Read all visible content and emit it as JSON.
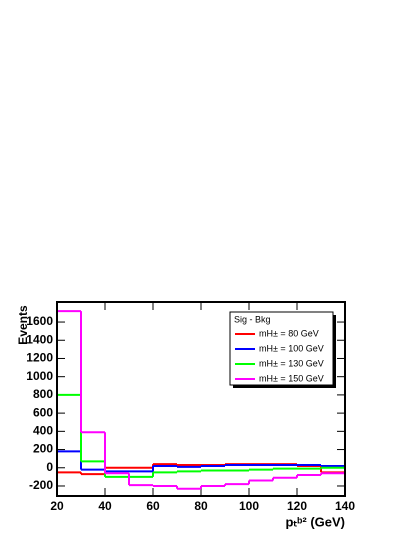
{
  "chart_data": {
    "type": "histogram",
    "xlabel": "pₜᵇ² (GeV)",
    "ylabel": "Events",
    "legend_title": "Sig - Bkg",
    "legend": "upper right",
    "bins": [
      20,
      30,
      40,
      50,
      60,
      70,
      80,
      90,
      100,
      110,
      120,
      130,
      140
    ],
    "series": [
      {
        "name": "mH± = 80 GeV",
        "color": "#ff0000",
        "values": [
          -50,
          -70,
          0,
          0,
          40,
          30,
          30,
          40,
          40,
          40,
          20,
          -50
        ]
      },
      {
        "name": "mH± = 100 GeV",
        "color": "#0000ff",
        "values": [
          180,
          -20,
          -40,
          -40,
          20,
          10,
          20,
          30,
          30,
          30,
          30,
          20
        ]
      },
      {
        "name": "mH± = 130 GeV",
        "color": "#00ff00",
        "values": [
          800,
          70,
          -100,
          -100,
          -50,
          -40,
          -30,
          -30,
          -20,
          -10,
          -10,
          0
        ]
      },
      {
        "name": "mH± = 150 GeV",
        "color": "#ff00ff",
        "values": [
          1720,
          390,
          -60,
          -190,
          -200,
          -230,
          -200,
          -180,
          -140,
          -110,
          -80,
          -60
        ]
      }
    ],
    "xlim": [
      20,
      140
    ],
    "xticks": [
      20,
      40,
      60,
      80,
      100,
      120,
      140
    ],
    "ylim": [
      -310,
      1820
    ],
    "yticks": [
      -200,
      0,
      200,
      400,
      600,
      800,
      1000,
      1200,
      1400,
      1600
    ]
  }
}
